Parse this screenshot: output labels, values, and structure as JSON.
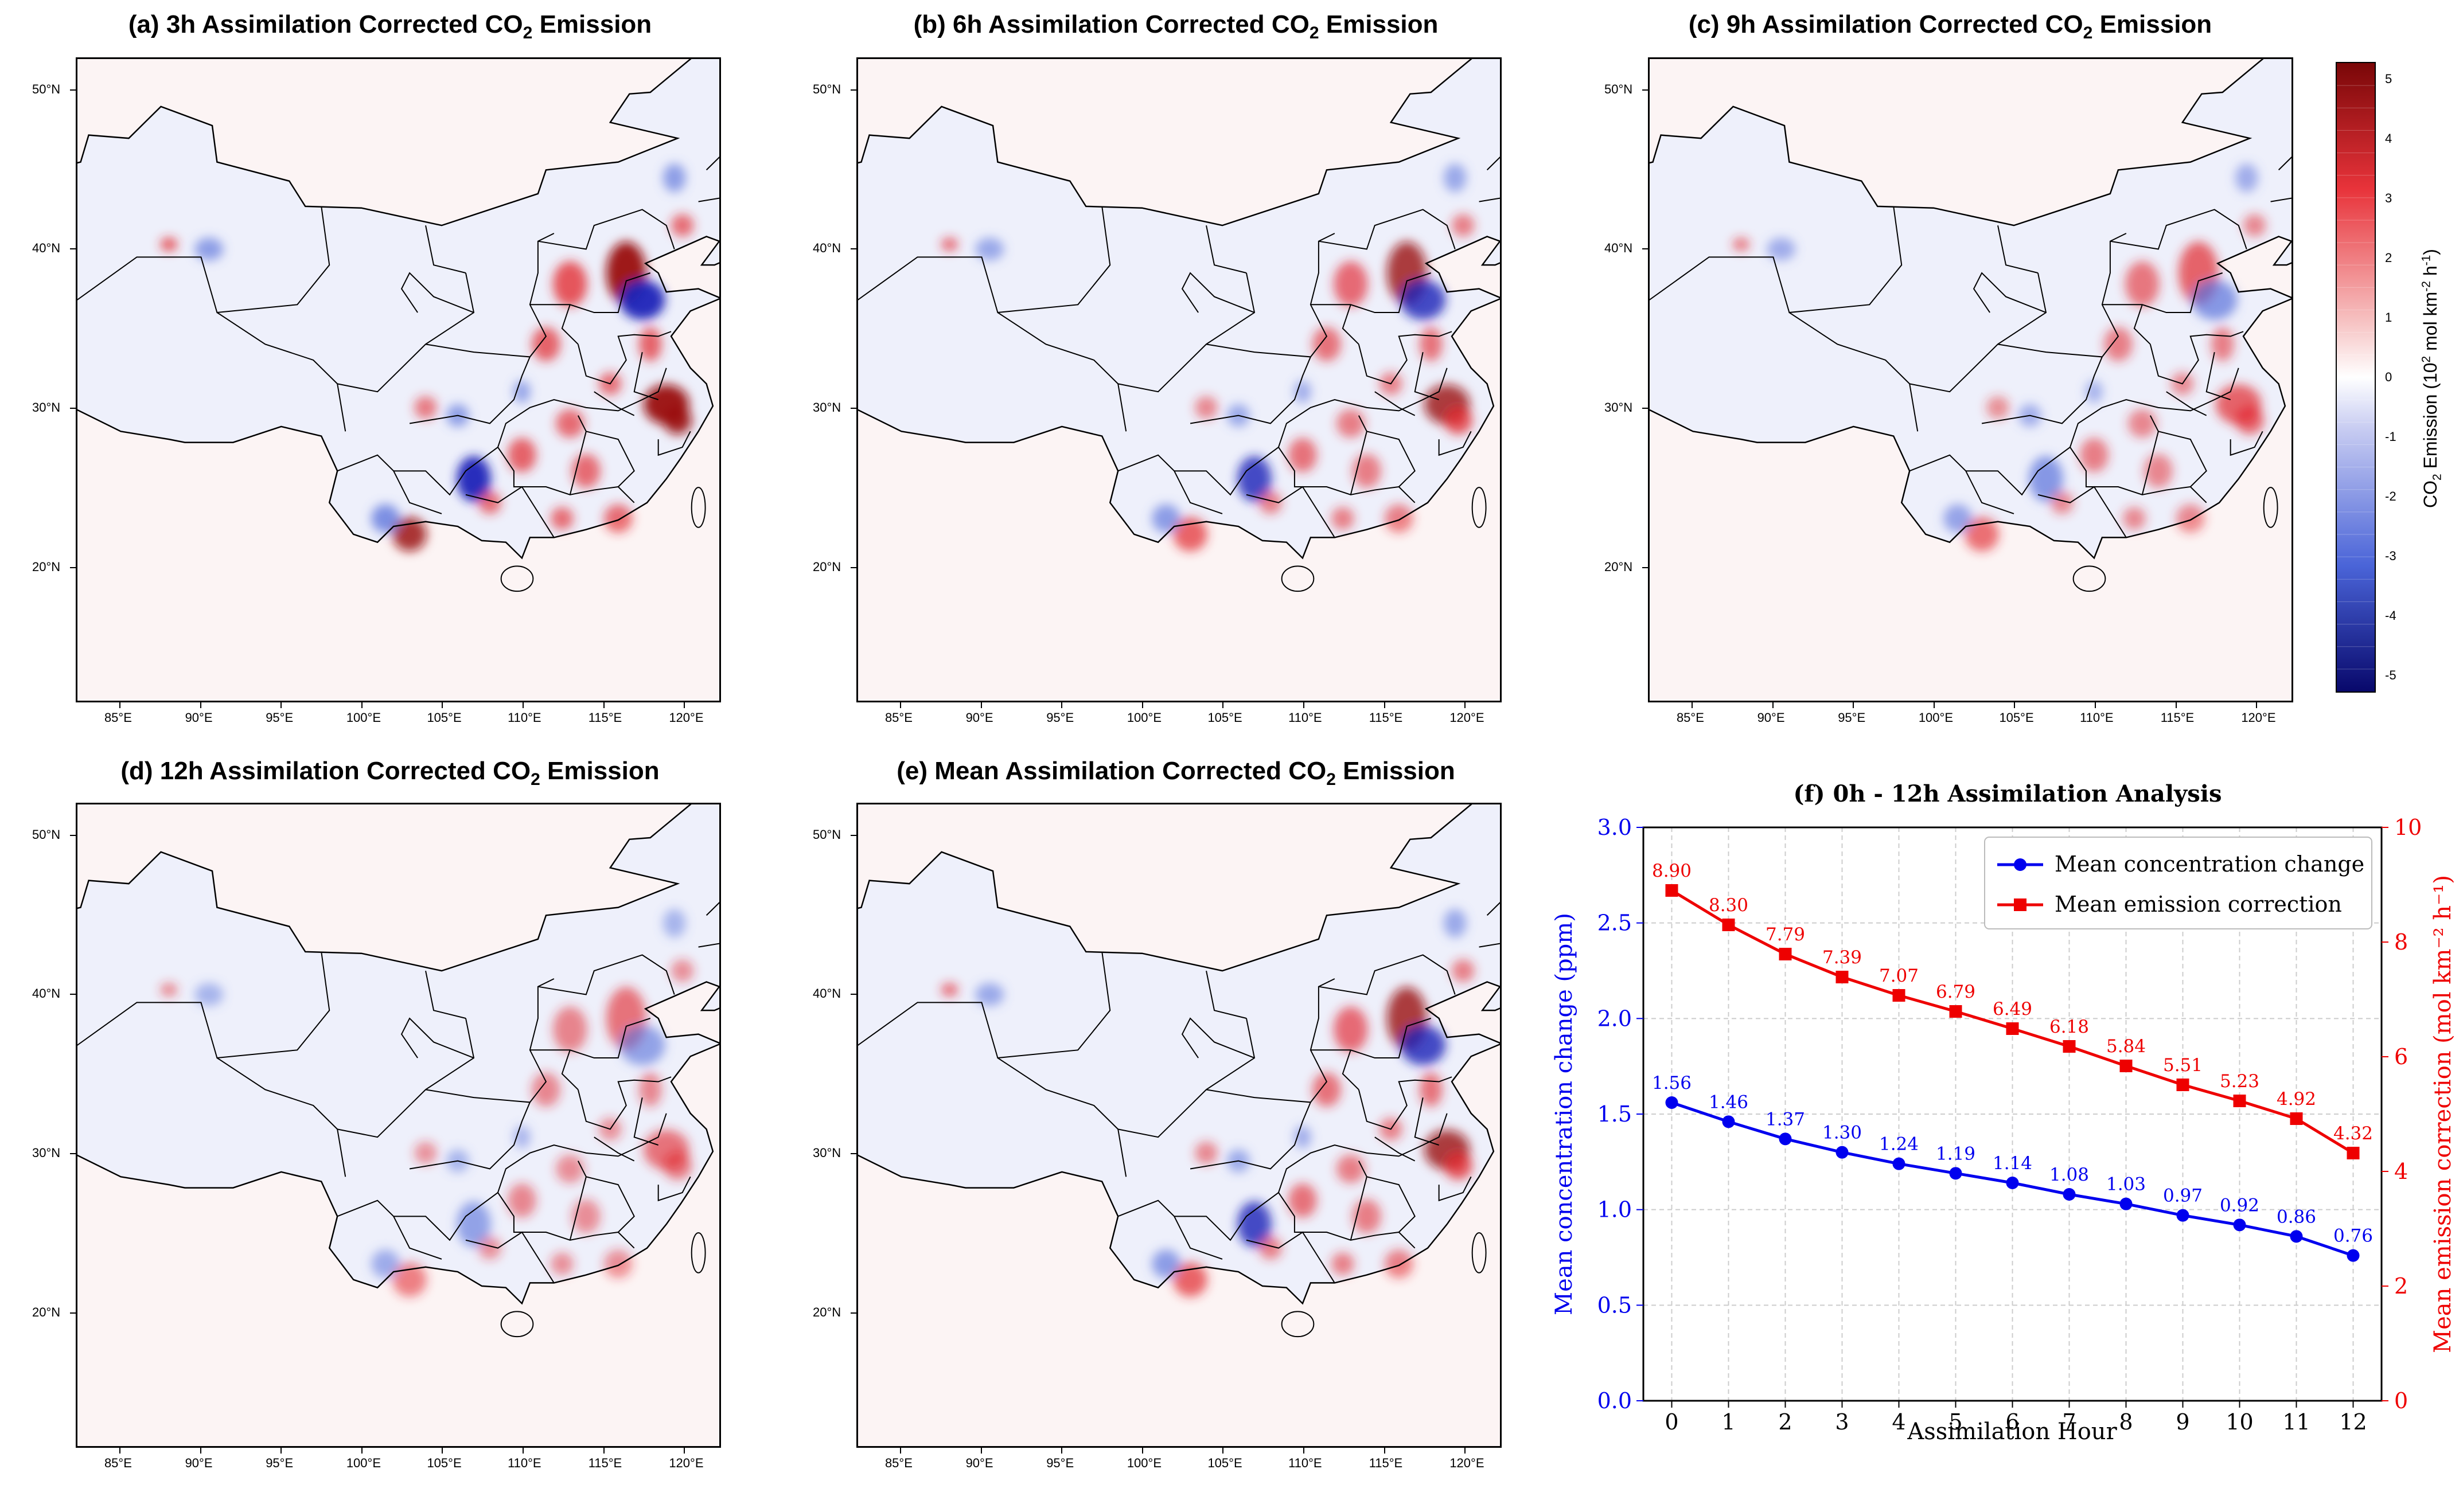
{
  "figure": {
    "panels": [
      {
        "title_pre": "(a) 3h Assimilation Corrected CO",
        "title_sub": "2",
        "title_post": " Emission"
      },
      {
        "title_pre": "(b) 6h Assimilation Corrected CO",
        "title_sub": "2",
        "title_post": " Emission"
      },
      {
        "title_pre": "(c) 9h Assimilation Corrected CO",
        "title_sub": "2",
        "title_post": " Emission"
      },
      {
        "title_pre": "(d) 12h Assimilation Corrected CO",
        "title_sub": "2",
        "title_post": " Emission"
      },
      {
        "title_pre": "(e) Mean Assimilation Corrected CO",
        "title_sub": "2",
        "title_post": " Emission"
      }
    ],
    "map_axes": {
      "lon_labels": [
        "85°E",
        "90°E",
        "95°E",
        "100°E",
        "105°E",
        "110°E",
        "115°E",
        "120°E"
      ],
      "lat_labels": [
        "50°N",
        "40°N",
        "30°N",
        "20°N"
      ]
    },
    "colorbar": {
      "ticks": [
        "5",
        "4",
        "3",
        "2",
        "1",
        "0",
        "-1",
        "-2",
        "-3",
        "-4",
        "-5"
      ],
      "label_pre": "CO",
      "label_sub": "2",
      "label_mid": " Emission (10",
      "label_sup1": "2",
      "label_mid2": " mol km",
      "label_sup2": "-2",
      "label_mid3": " h",
      "label_sup3": "-1",
      "label_post": ")",
      "colors": {
        "neg_max": "#08086b",
        "neg_mid": "#4a64d8",
        "zero": "#ffffff",
        "pos_mid": "#e8333a",
        "pos_max": "#7a0708"
      }
    }
  },
  "chart_data": {
    "type": "line",
    "title": "(f) 0h - 12h Assimilation Analysis",
    "xlabel": "Assimilation Hour",
    "x": [
      0,
      1,
      2,
      3,
      4,
      5,
      6,
      7,
      8,
      9,
      10,
      11,
      12
    ],
    "x_tick_labels": [
      "0",
      "1",
      "2",
      "3",
      "4",
      "5",
      "6",
      "7",
      "8",
      "9",
      "10",
      "11",
      "12"
    ],
    "left_axis": {
      "label": "Mean concentration change (ppm)",
      "ylim": [
        0.0,
        3.0
      ],
      "ticks": [
        "0.0",
        "0.5",
        "1.0",
        "1.5",
        "2.0",
        "2.5",
        "3.0"
      ],
      "color": "#0000ee"
    },
    "right_axis": {
      "label": "Mean emission correction (mol km⁻² h⁻¹)",
      "ylim": [
        0,
        10
      ],
      "ticks": [
        "0",
        "2",
        "4",
        "6",
        "8",
        "10"
      ],
      "color": "#ee0000"
    },
    "series": [
      {
        "name": "Mean concentration change",
        "axis": "left",
        "marker": "circle",
        "color": "#0000ee",
        "values": [
          1.56,
          1.46,
          1.37,
          1.3,
          1.24,
          1.19,
          1.14,
          1.08,
          1.03,
          0.97,
          0.92,
          0.86,
          0.76
        ],
        "labels": [
          "1.56",
          "1.46",
          "1.37",
          "1.30",
          "1.24",
          "1.19",
          "1.14",
          "1.08",
          "1.03",
          "0.97",
          "0.92",
          "0.86",
          "0.76"
        ]
      },
      {
        "name": "Mean emission correction",
        "axis": "right",
        "marker": "square",
        "color": "#ee0000",
        "values": [
          8.9,
          8.3,
          7.79,
          7.39,
          7.07,
          6.79,
          6.49,
          6.18,
          5.84,
          5.51,
          5.23,
          4.92,
          4.32
        ],
        "labels": [
          "8.90",
          "8.30",
          "7.79",
          "7.39",
          "7.07",
          "6.79",
          "6.49",
          "6.18",
          "5.84",
          "5.51",
          "5.23",
          "4.92",
          "4.32"
        ]
      }
    ],
    "grid": true,
    "legend": "top-right"
  }
}
